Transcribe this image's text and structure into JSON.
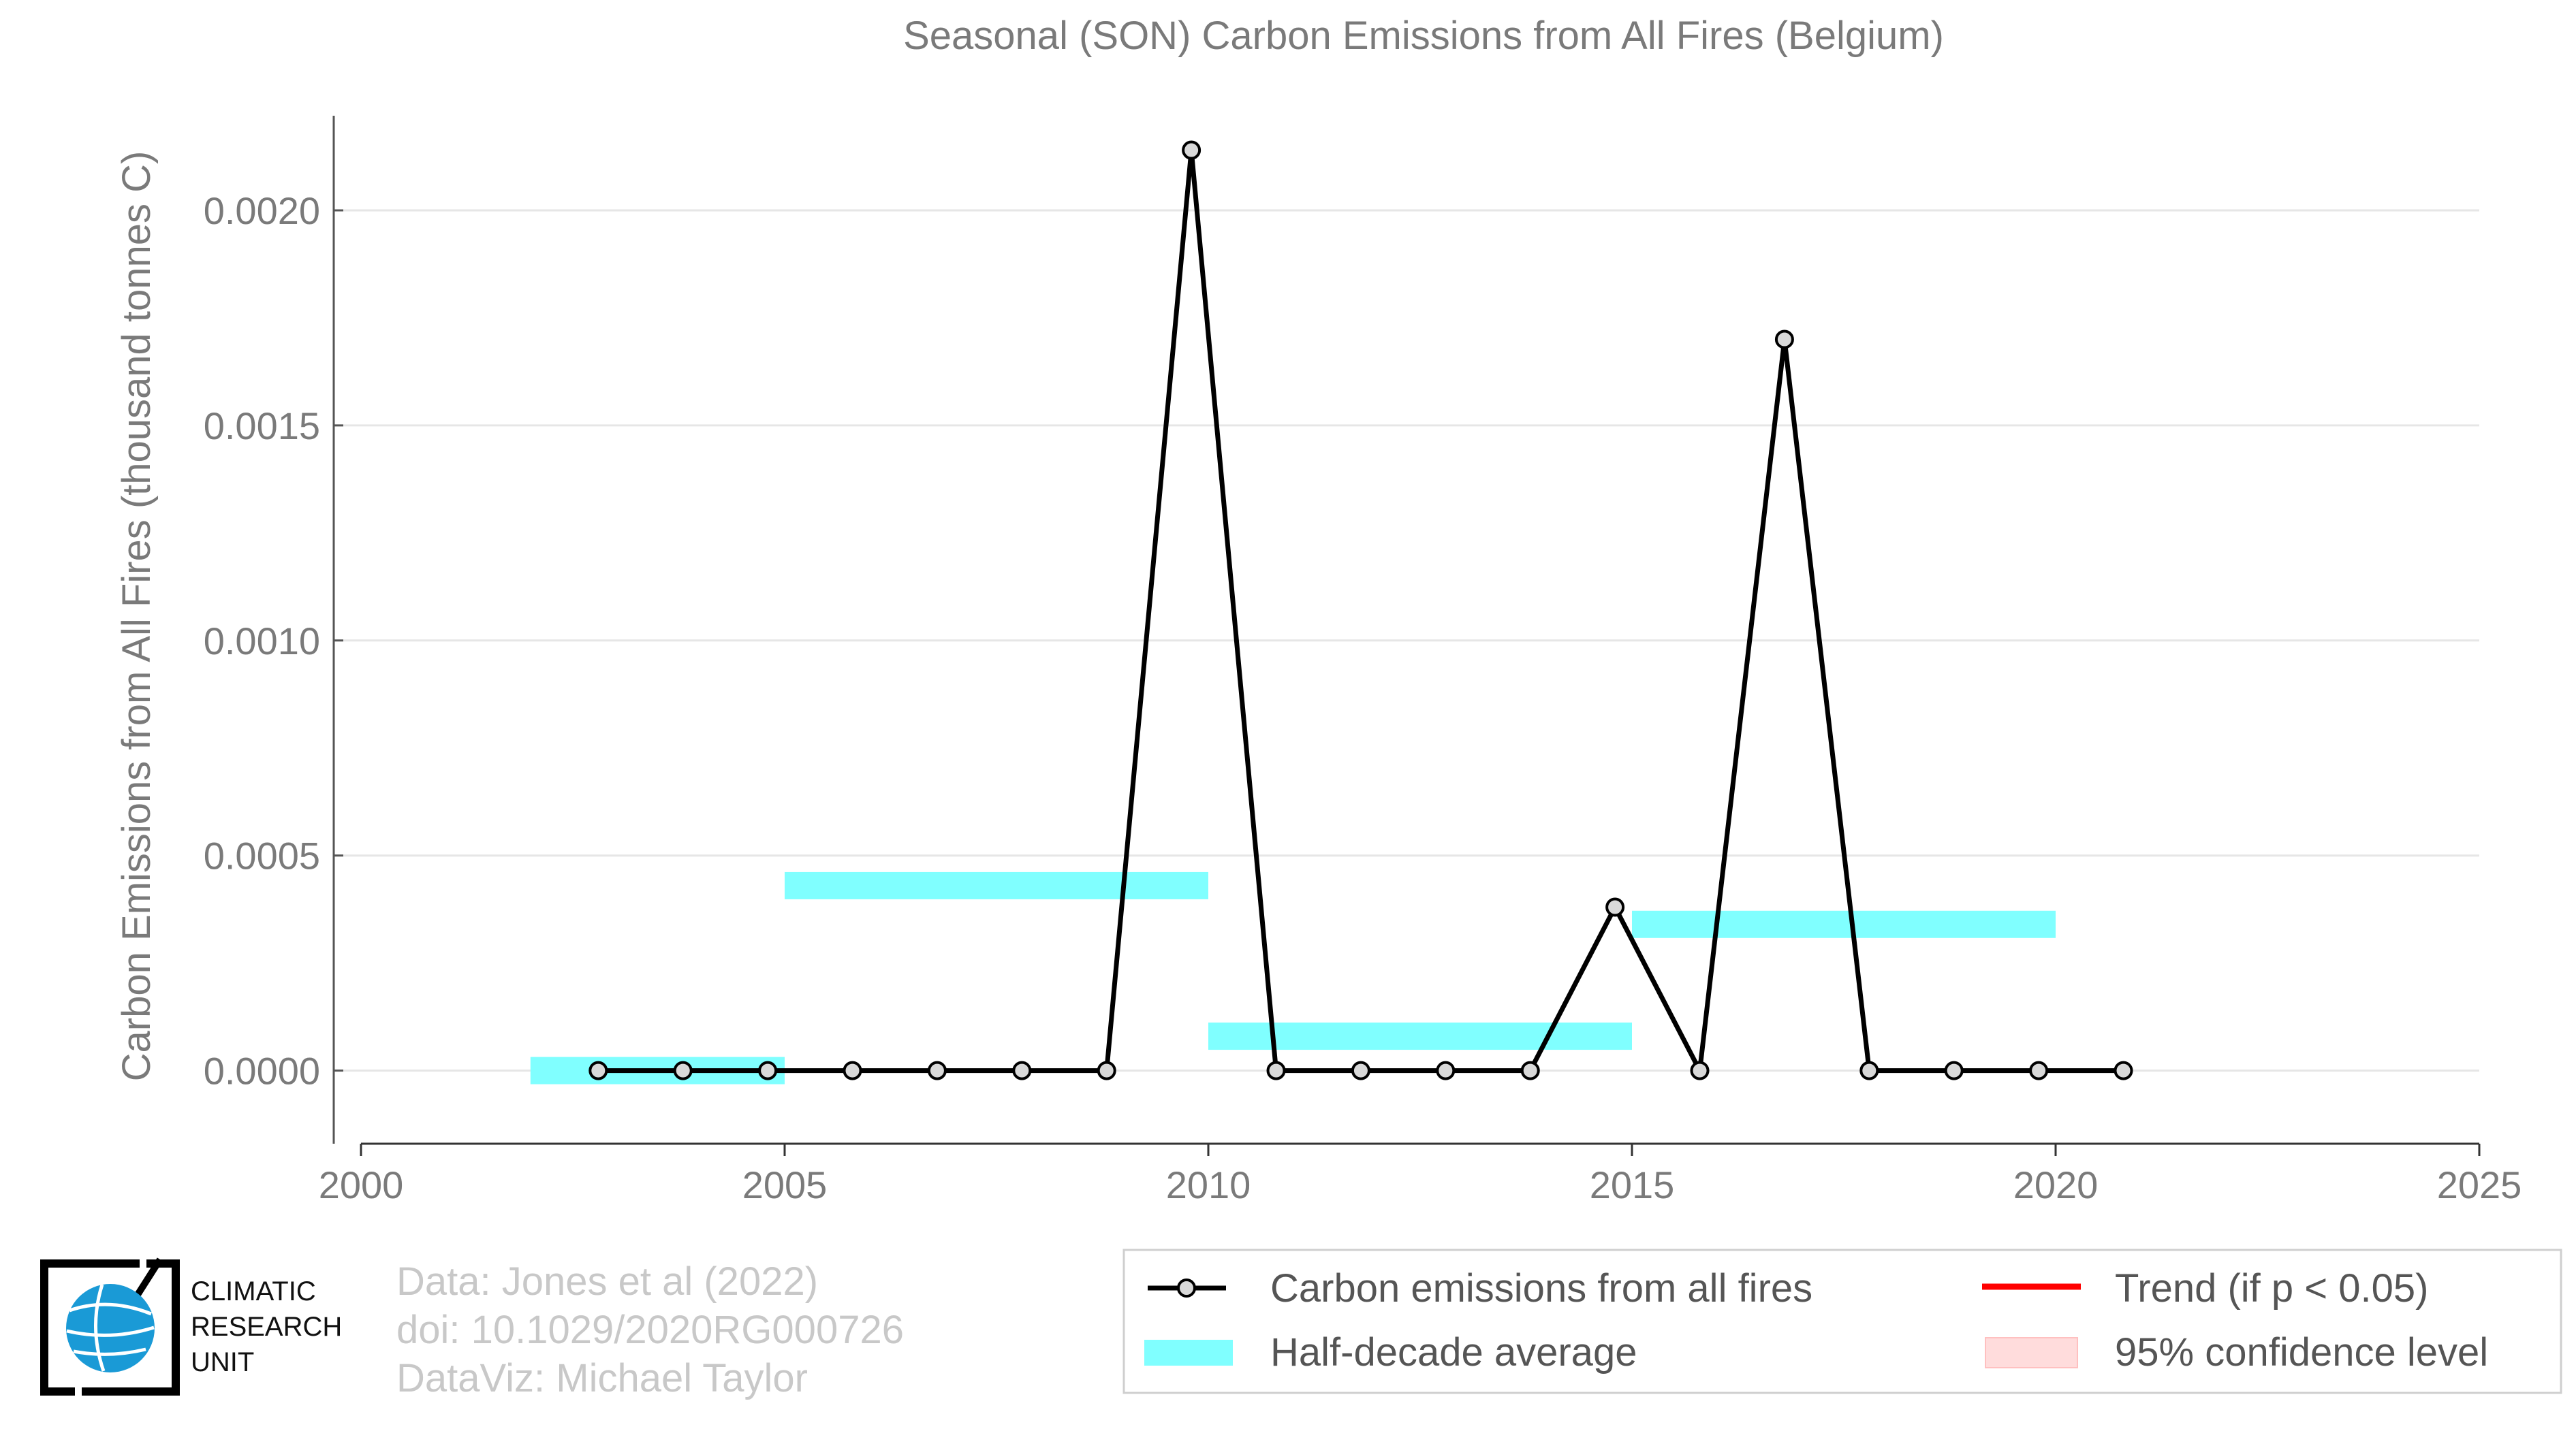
{
  "chart_data": {
    "type": "line",
    "title": "Seasonal (SON) Carbon Emissions from All Fires (Belgium)",
    "xlabel": "",
    "ylabel": "Carbon Emissions from All Fires (thousand tonnes C)",
    "xlim": [
      2000,
      2025
    ],
    "ylim": [
      -0.00017,
      0.00222
    ],
    "x_ticks": [
      "2000",
      "2005",
      "2010",
      "2015",
      "2020",
      "2025"
    ],
    "y_ticks": [
      "0.0000",
      "0.0005",
      "0.0010",
      "0.0015",
      "0.0020"
    ],
    "grid": "horizontal",
    "series": [
      {
        "name": "Carbon emissions from all fires",
        "color": "#000000",
        "x": [
          2002.8,
          2003.8,
          2004.8,
          2005.8,
          2006.8,
          2007.8,
          2008.8,
          2009.8,
          2010.8,
          2011.8,
          2012.8,
          2013.8,
          2014.8,
          2015.8,
          2016.8,
          2017.8,
          2018.8,
          2019.8,
          2020.8
        ],
        "values": [
          0,
          0,
          0,
          0,
          0,
          0,
          0,
          0.00214,
          0,
          0,
          0,
          0,
          0.00038,
          0,
          0.0017,
          0,
          0,
          0,
          0
        ]
      }
    ],
    "half_decade_average": {
      "name": "Half-decade average",
      "color": "#80ffff",
      "segments": [
        {
          "start": 2002.0,
          "end": 2005.0,
          "value": 0.0
        },
        {
          "start": 2005.0,
          "end": 2010.0,
          "value": 0.00043
        },
        {
          "start": 2010.0,
          "end": 2015.0,
          "value": 8e-05
        },
        {
          "start": 2015.0,
          "end": 2020.0,
          "value": 0.00034
        }
      ]
    },
    "legend": {
      "placement": "bottom-right",
      "items": [
        {
          "label": "Carbon emissions from all fires",
          "symbol": "line-marker",
          "color": "#000000"
        },
        {
          "label": "Half-decade average",
          "symbol": "band",
          "color": "#80ffff"
        },
        {
          "label": "Trend (if p < 0.05)",
          "symbol": "line",
          "color": "#ff0000"
        },
        {
          "label": "95% confidence level",
          "symbol": "band",
          "color": "#ffdcdc"
        }
      ]
    }
  },
  "credits": {
    "data": "Data: Jones et al (2022)",
    "doi": "doi: 10.1029/2020RG000726",
    "dataviz": "DataViz: Michael Taylor"
  },
  "logo": {
    "line1": "CLIMATIC",
    "line2": "RESEARCH",
    "line3": "UNIT"
  }
}
